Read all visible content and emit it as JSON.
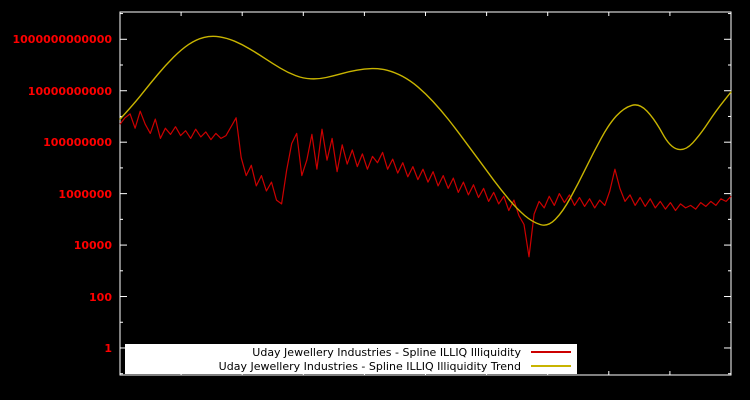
{
  "chart_data": {
    "type": "line",
    "title": "",
    "xlabel": "",
    "ylabel": "",
    "grid": false,
    "legend_position": "bottom-center",
    "background_color": "#000000",
    "border_color": "#ffffff",
    "axis_label_color": "#ff0000",
    "x_axis": {
      "tick_labels_visible": false
    },
    "y_axis": {
      "scale": "log10",
      "range": [
        0.089,
        11500000000000.0
      ],
      "ticks": [
        {
          "label": "1000000000000",
          "value": 1000000000000.0
        },
        {
          "label": "10000000000",
          "value": 10000000000.0
        },
        {
          "label": "100000000",
          "value": 100000000.0
        },
        {
          "label": "1000000",
          "value": 1000000.0
        },
        {
          "label": "10000",
          "value": 10000.0
        },
        {
          "label": "100",
          "value": 100
        },
        {
          "label": "1",
          "value": 1
        }
      ]
    },
    "series": [
      {
        "name": "Uday Jewellery Industries - Spline ILLIQ Illiquidity",
        "color": "#cc0000",
        "smooth": false,
        "values": [
          500000000.0,
          890000000.0,
          1260000000.0,
          350000000.0,
          1600000000.0,
          500000000.0,
          220000000.0,
          790000000.0,
          140000000.0,
          350000000.0,
          200000000.0,
          400000000.0,
          180000000.0,
          280000000.0,
          140000000.0,
          320000000.0,
          160000000.0,
          250000000.0,
          126000000.0,
          220000000.0,
          140000000.0,
          180000000.0,
          400000000.0,
          890000000.0,
          25000000.0,
          5000000.0,
          12600000.0,
          2000000.0,
          5000000.0,
          1260000.0,
          2800000.0,
          560000.0,
          400000.0,
          7900000.0,
          89000000.0,
          220000000.0,
          5000000.0,
          20000000.0,
          200000000.0,
          8900000.0,
          320000000.0,
          20000000.0,
          140000000.0,
          7100000.0,
          79000000.0,
          14000000.0,
          50000000.0,
          11200000.0,
          35000000.0,
          8900000.0,
          28000000.0,
          16000000.0,
          40000000.0,
          8900000.0,
          22000000.0,
          6300000.0,
          16000000.0,
          4500000.0,
          11200000.0,
          3500000.0,
          8900000.0,
          2800000.0,
          7100000.0,
          2000000.0,
          5000000.0,
          1600000.0,
          4000000.0,
          1120000.0,
          2800000.0,
          890000.0,
          2200000.0,
          710000.0,
          1600000.0,
          500000.0,
          1120000.0,
          400000.0,
          790000.0,
          220000.0,
          560000.0,
          140000.0,
          63000.0,
          3500.0,
          160000.0,
          500000.0,
          280000.0,
          790000.0,
          350000.0,
          1000000.0,
          450000.0,
          890000.0,
          350000.0,
          710000.0,
          320000.0,
          630000.0,
          280000.0,
          560000.0,
          350000.0,
          1260000.0,
          8900000.0,
          1600000.0,
          500000.0,
          890000.0,
          350000.0,
          710000.0,
          320000.0,
          630000.0,
          280000.0,
          500000.0,
          250000.0,
          450000.0,
          220000.0,
          400000.0,
          280000.0,
          350000.0,
          250000.0,
          450000.0,
          320000.0,
          500000.0,
          350000.0,
          630000.0,
          500000.0,
          790000.0
        ]
      },
      {
        "name": "Uday Jewellery Industries - Spline ILLIQ Illiquidity Trend",
        "color": "#c8b400",
        "smooth": true,
        "values": [
          790000000.0,
          3500000000.0,
          20000000000.0,
          100000000000.0,
          400000000000.0,
          1000000000000.0,
          1400000000000.0,
          1120000000000.0,
          630000000000.0,
          280000000000.0,
          112000000000.0,
          50000000000.0,
          30000000000.0,
          28000000000.0,
          38000000000.0,
          56000000000.0,
          71000000000.0,
          74000000000.0,
          52000000000.0,
          25000000000.0,
          7900000000.0,
          1800000000.0,
          320000000.0,
          50000000.0,
          7900000.0,
          1260000.0,
          250000.0,
          79000.0,
          50000.0,
          200000.0,
          2500000.0,
          40000000.0,
          500000000.0,
          2200000000.0,
          3300000000.0,
          790000000.0,
          63000000.0,
          45000000.0,
          200000000.0,
          1600000000.0,
          8900000000.0
        ]
      }
    ]
  },
  "legend": {
    "items": [
      {
        "label": "Uday Jewellery Industries - Spline ILLIQ Illiquidity"
      },
      {
        "label": "Uday Jewellery Industries - Spline ILLIQ Illiquidity Trend"
      }
    ]
  }
}
